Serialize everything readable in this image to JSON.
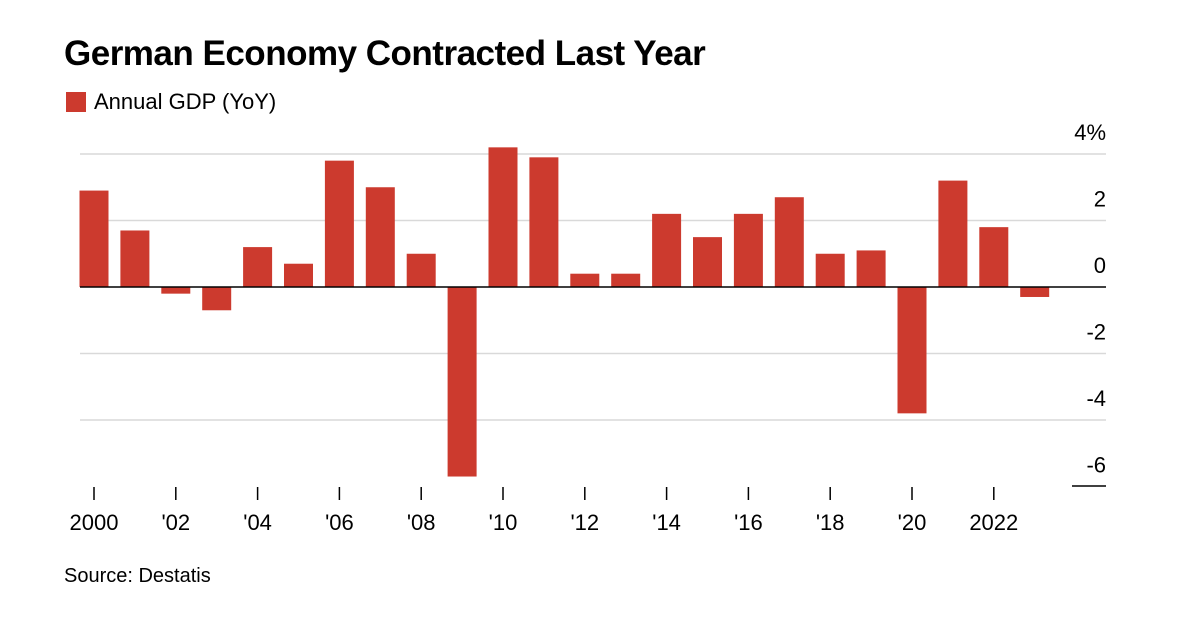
{
  "title": "German Economy Contracted Last Year",
  "source": "Source: Destatis",
  "colors": {
    "bar": "#cc3a2e",
    "grid": "#d9d9d9",
    "axis": "#000000"
  },
  "chart_data": {
    "type": "bar",
    "title": "German Economy Contracted Last Year",
    "legend": {
      "position": "top-left"
    },
    "series": [
      {
        "name": "Annual GDP (YoY)",
        "x": [
          2000,
          2001,
          2002,
          2003,
          2004,
          2005,
          2006,
          2007,
          2008,
          2009,
          2010,
          2011,
          2012,
          2013,
          2014,
          2015,
          2016,
          2017,
          2018,
          2019,
          2020,
          2021,
          2022,
          2023
        ],
        "values": [
          2.9,
          1.7,
          -0.2,
          -0.7,
          1.2,
          0.7,
          3.8,
          3.0,
          1.0,
          -5.7,
          4.2,
          3.9,
          0.4,
          0.4,
          2.2,
          1.5,
          2.2,
          2.7,
          1.0,
          1.1,
          -3.8,
          3.2,
          1.8,
          -0.3
        ]
      }
    ],
    "ylim": [
      -6,
      4
    ],
    "y_ticks": [
      4,
      2,
      0,
      -2,
      -4,
      -6
    ],
    "y_tick_labels": [
      "4%",
      "2",
      "0",
      "-2",
      "-4",
      "-6"
    ],
    "x_ticks": [
      2000,
      2002,
      2004,
      2006,
      2008,
      2010,
      2012,
      2014,
      2016,
      2018,
      2020,
      2022
    ],
    "x_tick_labels": [
      "2000",
      "'02",
      "'04",
      "'06",
      "'08",
      "'10",
      "'12",
      "'14",
      "'16",
      "'18",
      "'20",
      "2022"
    ],
    "grid": true,
    "xlabel": "",
    "ylabel": ""
  }
}
